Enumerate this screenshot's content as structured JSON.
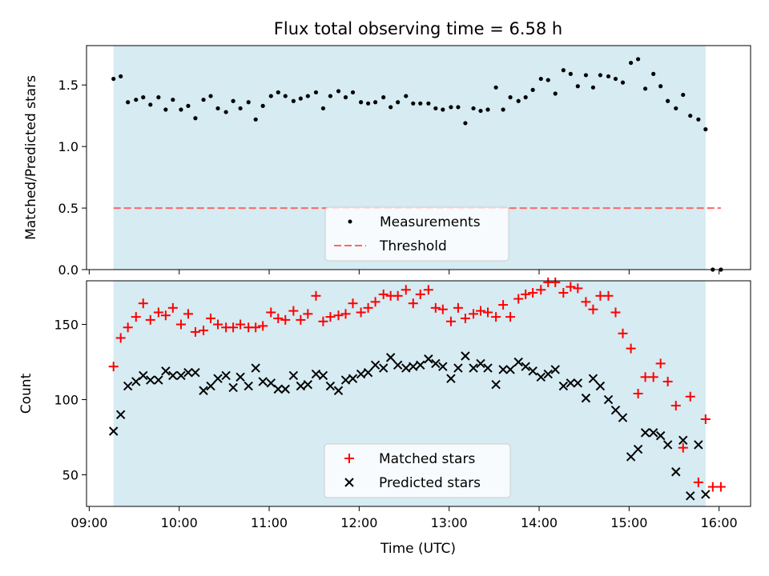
{
  "chart_data": {
    "title": "Flux total observing time = 6.58 h",
    "xlabel": "Time (UTC)",
    "x_unit": "hours UTC",
    "xlim": [
      8.97,
      16.35
    ],
    "x_ticks": [
      {
        "value": 9,
        "label": "09:00"
      },
      {
        "value": 10,
        "label": "10:00"
      },
      {
        "value": 11,
        "label": "11:00"
      },
      {
        "value": 12,
        "label": "12:00"
      },
      {
        "value": 13,
        "label": "13:00"
      },
      {
        "value": 14,
        "label": "14:00"
      },
      {
        "value": 15,
        "label": "15:00"
      },
      {
        "value": 16,
        "label": "16:00"
      }
    ],
    "observing_window": {
      "start": 9.27,
      "end": 15.85,
      "color": "#add8e6"
    },
    "top": {
      "type": "scatter",
      "ylabel": "Matched/Predicted stars",
      "ylim": [
        0,
        1.82
      ],
      "y_ticks": [
        {
          "value": 0,
          "label": "0.0"
        },
        {
          "value": 0.5,
          "label": "0.5"
        },
        {
          "value": 1.0,
          "label": "1.0"
        },
        {
          "value": 1.5,
          "label": "1.5"
        }
      ],
      "threshold": {
        "value": 0.5,
        "x_start": 9.27,
        "x_end": 16.02,
        "color": "#ff6666"
      },
      "series_name": "Measurements",
      "threshold_name": "Threshold",
      "x": [
        9.27,
        9.35,
        9.43,
        9.52,
        9.6,
        9.68,
        9.77,
        9.85,
        9.93,
        10.02,
        10.1,
        10.18,
        10.27,
        10.35,
        10.43,
        10.52,
        10.6,
        10.68,
        10.77,
        10.85,
        10.93,
        11.02,
        11.1,
        11.18,
        11.27,
        11.35,
        11.43,
        11.52,
        11.6,
        11.68,
        11.77,
        11.85,
        11.93,
        12.02,
        12.1,
        12.18,
        12.27,
        12.35,
        12.43,
        12.52,
        12.6,
        12.68,
        12.77,
        12.85,
        12.93,
        13.02,
        13.1,
        13.18,
        13.27,
        13.35,
        13.43,
        13.52,
        13.6,
        13.68,
        13.77,
        13.85,
        13.93,
        14.02,
        14.1,
        14.18,
        14.27,
        14.35,
        14.43,
        14.52,
        14.6,
        14.68,
        14.77,
        14.85,
        14.93,
        15.02,
        15.1,
        15.18,
        15.27,
        15.35,
        15.43,
        15.52,
        15.6,
        15.68,
        15.77,
        15.85,
        15.93,
        16.02
      ],
      "y": [
        1.55,
        1.57,
        1.36,
        1.38,
        1.4,
        1.34,
        1.4,
        1.3,
        1.38,
        1.3,
        1.33,
        1.23,
        1.38,
        1.41,
        1.31,
        1.28,
        1.37,
        1.31,
        1.36,
        1.22,
        1.33,
        1.41,
        1.44,
        1.41,
        1.37,
        1.39,
        1.41,
        1.44,
        1.31,
        1.41,
        1.45,
        1.4,
        1.44,
        1.36,
        1.35,
        1.36,
        1.4,
        1.32,
        1.36,
        1.41,
        1.35,
        1.35,
        1.35,
        1.31,
        1.3,
        1.32,
        1.32,
        1.19,
        1.31,
        1.29,
        1.3,
        1.48,
        1.3,
        1.4,
        1.37,
        1.4,
        1.46,
        1.55,
        1.54,
        1.43,
        1.62,
        1.59,
        1.49,
        1.58,
        1.48,
        1.58,
        1.57,
        1.55,
        1.52,
        1.68,
        1.71,
        1.47,
        1.59,
        1.49,
        1.37,
        1.31,
        1.42,
        1.25,
        1.22,
        1.14,
        0.0,
        0.0
      ]
    },
    "bottom": {
      "type": "scatter",
      "ylabel": "Count",
      "ylim": [
        29,
        179
      ],
      "y_ticks": [
        {
          "value": 50,
          "label": "50"
        },
        {
          "value": 100,
          "label": "100"
        },
        {
          "value": 150,
          "label": "150"
        }
      ],
      "series": [
        {
          "name": "Matched stars",
          "marker": "plus",
          "color": "#ff0000",
          "x": [
            9.27,
            9.35,
            9.43,
            9.52,
            9.6,
            9.68,
            9.77,
            9.85,
            9.93,
            10.02,
            10.1,
            10.18,
            10.27,
            10.35,
            10.43,
            10.52,
            10.6,
            10.68,
            10.77,
            10.85,
            10.93,
            11.02,
            11.1,
            11.18,
            11.27,
            11.35,
            11.43,
            11.52,
            11.6,
            11.68,
            11.77,
            11.85,
            11.93,
            12.02,
            12.1,
            12.18,
            12.27,
            12.35,
            12.43,
            12.52,
            12.6,
            12.68,
            12.77,
            12.85,
            12.93,
            13.02,
            13.1,
            13.18,
            13.27,
            13.35,
            13.43,
            13.52,
            13.6,
            13.68,
            13.77,
            13.85,
            13.93,
            14.02,
            14.1,
            14.18,
            14.27,
            14.35,
            14.43,
            14.52,
            14.6,
            14.68,
            14.77,
            14.85,
            14.93,
            15.02,
            15.1,
            15.18,
            15.27,
            15.35,
            15.43,
            15.52,
            15.6,
            15.68,
            15.77,
            15.85,
            15.93,
            16.02
          ],
          "y": [
            122,
            141,
            148,
            155,
            164,
            153,
            158,
            156,
            161,
            150,
            157,
            145,
            146,
            154,
            150,
            148,
            148,
            150,
            148,
            148,
            149,
            158,
            154,
            153,
            159,
            153,
            157,
            169,
            152,
            155,
            156,
            157,
            164,
            158,
            161,
            165,
            170,
            169,
            169,
            173,
            164,
            170,
            173,
            161,
            160,
            152,
            161,
            154,
            157,
            159,
            158,
            155,
            163,
            155,
            167,
            170,
            171,
            173,
            178,
            178,
            171,
            175,
            174,
            165,
            160,
            169,
            169,
            158,
            144,
            134,
            104,
            115,
            115,
            124,
            112,
            96,
            68,
            102,
            45,
            87,
            42,
            42
          ]
        },
        {
          "name": "Predicted stars",
          "marker": "x",
          "color": "#000000",
          "x": [
            9.27,
            9.35,
            9.43,
            9.52,
            9.6,
            9.68,
            9.77,
            9.85,
            9.93,
            10.02,
            10.1,
            10.18,
            10.27,
            10.35,
            10.43,
            10.52,
            10.6,
            10.68,
            10.77,
            10.85,
            10.93,
            11.02,
            11.1,
            11.18,
            11.27,
            11.35,
            11.43,
            11.52,
            11.6,
            11.68,
            11.77,
            11.85,
            11.93,
            12.02,
            12.1,
            12.18,
            12.27,
            12.35,
            12.43,
            12.52,
            12.6,
            12.68,
            12.77,
            12.85,
            12.93,
            13.02,
            13.1,
            13.18,
            13.27,
            13.35,
            13.43,
            13.52,
            13.6,
            13.68,
            13.77,
            13.85,
            13.93,
            14.02,
            14.1,
            14.18,
            14.27,
            14.35,
            14.43,
            14.52,
            14.6,
            14.68,
            14.77,
            14.85,
            14.93,
            15.02,
            15.1,
            15.18,
            15.27,
            15.35,
            15.43,
            15.52,
            15.6,
            15.68,
            15.77,
            15.85
          ],
          "y": [
            79,
            90,
            109,
            112,
            116,
            113,
            113,
            119,
            116,
            116,
            118,
            118,
            106,
            109,
            114,
            116,
            108,
            115,
            109,
            121,
            112,
            111,
            107,
            107,
            116,
            109,
            110,
            117,
            116,
            109,
            106,
            113,
            114,
            117,
            118,
            123,
            121,
            128,
            123,
            121,
            122,
            123,
            127,
            124,
            122,
            114,
            121,
            129,
            121,
            124,
            121,
            110,
            120,
            120,
            125,
            122,
            119,
            115,
            117,
            120,
            109,
            111,
            111,
            101,
            114,
            109,
            100,
            93,
            88,
            62,
            67,
            78,
            78,
            76,
            70,
            52,
            73,
            36,
            70,
            37
          ]
        }
      ]
    }
  }
}
